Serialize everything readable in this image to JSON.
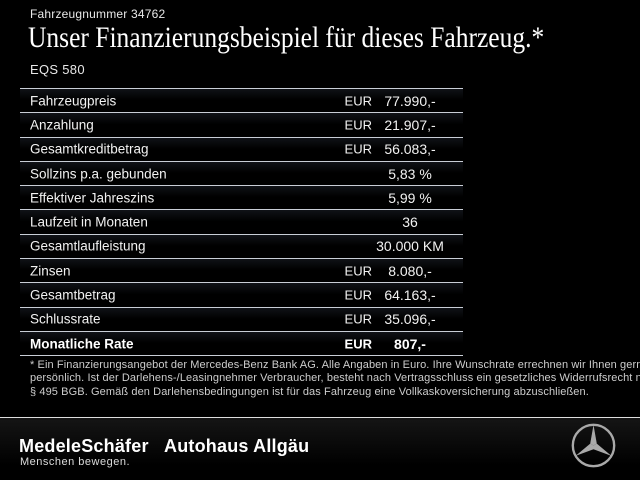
{
  "header": {
    "vehicle_number": "Fahrzeugnummer 34762",
    "title": "Unser Finanzierungsbeispiel für dieses Fahrzeug.*",
    "model": "EQS 580"
  },
  "table": {
    "rows": [
      {
        "label": "Fahrzeugpreis",
        "currency": "EUR",
        "value": "77.990,-",
        "bold": false
      },
      {
        "label": "Anzahlung",
        "currency": "EUR",
        "value": "21.907,-",
        "bold": false
      },
      {
        "label": "Gesamtkreditbetrag",
        "currency": "EUR",
        "value": "56.083,-",
        "bold": false
      },
      {
        "label": "Sollzins p.a. gebunden",
        "currency": "",
        "value": "5,83 %",
        "bold": false
      },
      {
        "label": "Effektiver Jahreszins",
        "currency": "",
        "value": "5,99 %",
        "bold": false
      },
      {
        "label": "Laufzeit in Monaten",
        "currency": "",
        "value": "36",
        "bold": false
      },
      {
        "label": "Gesamtlaufleistung",
        "currency": "",
        "value": "30.000 KM",
        "bold": false
      },
      {
        "label": "Zinsen",
        "currency": "EUR",
        "value": "8.080,-",
        "bold": false
      },
      {
        "label": "Gesamtbetrag",
        "currency": "EUR",
        "value": "64.163,-",
        "bold": false
      },
      {
        "label": "Schlussrate",
        "currency": "EUR",
        "value": "35.096,-",
        "bold": false
      },
      {
        "label": "Monatliche Rate",
        "currency": "EUR",
        "value": "807,-",
        "bold": true
      }
    ]
  },
  "disclaimer": {
    "lines": [
      "* Ein Finanzierungsangebot der Mercedes-Benz Bank AG. Alle Angaben in Euro. Ihre Wunschrate errechnen wir Ihnen gerne",
      "persönlich. Ist der Darlehens-/Leasingnehmer Verbraucher, besteht nach Vertragsschluss ein gesetzliches Widerrufsrecht nach",
      "§ 495 BGB. Gemäß den Darlehensbedingungen ist für das Fahrzeug eine Vollkaskoversicherung abzuschließen."
    ]
  },
  "footer": {
    "dealer_logo_primary": "MedeleSchäfer",
    "dealer_tagline": "Menschen bewegen.",
    "dealer_logo_secondary": "Autohaus Allgäu",
    "brand_icon": "mercedes-star-icon"
  },
  "colors": {
    "background": "#000000",
    "text_primary": "#ffffff",
    "text_secondary": "#e8e8e8",
    "table_separator": "#c9ced6",
    "disclaimer_text": "#cdcdcd",
    "star_silver": "#a9a9a9"
  }
}
